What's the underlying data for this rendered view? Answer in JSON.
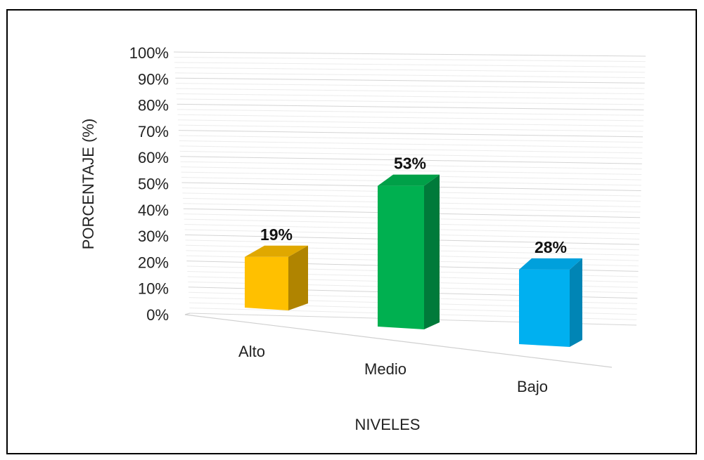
{
  "chart_data": {
    "type": "bar",
    "categories": [
      "Alto",
      "Medio",
      "Bajo"
    ],
    "values": [
      19,
      53,
      28
    ],
    "data_labels": [
      "19%",
      "53%",
      "28%"
    ],
    "colors": {
      "front": [
        "#ffc000",
        "#00b050",
        "#00b0f0"
      ],
      "side": [
        "#b08400",
        "#007a3a",
        "#0085b5"
      ],
      "top": [
        "#e0a800",
        "#00a048",
        "#00a0dc"
      ]
    },
    "ylabel": "PORCENTAJE (%)",
    "xlabel": "NIVELES",
    "ylim": [
      0,
      100
    ],
    "yticks": [
      "0%",
      "10%",
      "20%",
      "30%",
      "40%",
      "50%",
      "60%",
      "70%",
      "80%",
      "90%",
      "100%"
    ],
    "grid": true,
    "legend": "none",
    "style": "3d-column"
  }
}
